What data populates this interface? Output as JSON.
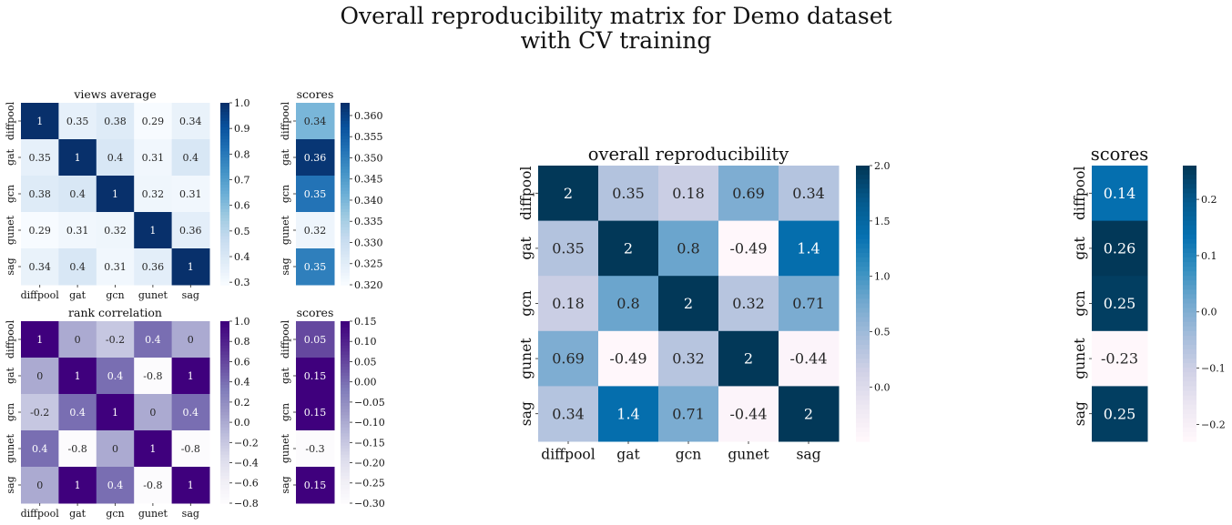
{
  "figure": {
    "title_line1": "Overall reproducibility matrix for Demo dataset",
    "title_line2": "with CV training"
  },
  "colormaps": {
    "Blues": [
      "#f7fbff",
      "#deebf7",
      "#c6dbef",
      "#9ecae1",
      "#6baed6",
      "#4292c6",
      "#2171b5",
      "#08519c",
      "#08306b"
    ],
    "Purples": [
      "#fcfbfd",
      "#efedf5",
      "#dadaeb",
      "#bcbddc",
      "#9e9ac8",
      "#807dba",
      "#6a51a3",
      "#54278f",
      "#3f007d"
    ],
    "PuBu": [
      "#fff7fb",
      "#ece7f2",
      "#d0d1e6",
      "#a6bddb",
      "#74a9cf",
      "#3690c0",
      "#0570b0",
      "#045a8d",
      "#023858"
    ]
  },
  "chart_data": [
    {
      "type": "heatmap",
      "title": "views average",
      "colormap": "Blues",
      "row_labels": [
        "diffpool",
        "gat",
        "gcn",
        "gunet",
        "sag"
      ],
      "col_labels": [
        "diffpool",
        "gat",
        "gcn",
        "gunet",
        "sag"
      ],
      "values": [
        [
          1,
          0.35,
          0.38,
          0.29,
          0.34
        ],
        [
          0.35,
          1,
          0.4,
          0.31,
          0.4
        ],
        [
          0.38,
          0.4,
          1,
          0.32,
          0.31
        ],
        [
          0.29,
          0.31,
          0.32,
          1,
          0.36
        ],
        [
          0.34,
          0.4,
          0.31,
          0.36,
          1
        ]
      ],
      "annotations": [
        [
          "1",
          "0.35",
          "0.38",
          "0.29",
          "0.34"
        ],
        [
          "0.35",
          "1",
          "0.4",
          "0.31",
          "0.4"
        ],
        [
          "0.38",
          "0.4",
          "1",
          "0.32",
          "0.31"
        ],
        [
          "0.29",
          "0.31",
          "0.32",
          "1",
          "0.36"
        ],
        [
          "0.34",
          "0.4",
          "0.31",
          "0.36",
          "1"
        ]
      ],
      "vmin": 0.29,
      "vmax": 1.0,
      "colorbar_ticks": [
        0.3,
        0.4,
        0.5,
        0.6,
        0.7,
        0.8,
        0.9,
        1.0
      ],
      "colorbar_labels": [
        "0.3",
        "0.4",
        "0.5",
        "0.6",
        "0.7",
        "0.8",
        "0.9",
        "1.0"
      ]
    },
    {
      "type": "heatmap",
      "title": "scores",
      "colormap": "Blues",
      "row_labels": [
        "diffpool",
        "gat",
        "gcn",
        "gunet",
        "sag"
      ],
      "col_labels": [],
      "values": [
        [
          0.34
        ],
        [
          0.362
        ],
        [
          0.352
        ],
        [
          0.322
        ],
        [
          0.35
        ]
      ],
      "annotations": [
        [
          "0.34"
        ],
        [
          "0.36"
        ],
        [
          "0.35"
        ],
        [
          "0.32"
        ],
        [
          "0.35"
        ]
      ],
      "vmin": 0.32,
      "vmax": 0.363,
      "colorbar_ticks": [
        0.32,
        0.325,
        0.33,
        0.335,
        0.34,
        0.345,
        0.35,
        0.355,
        0.36
      ],
      "colorbar_labels": [
        "0.320",
        "0.325",
        "0.330",
        "0.335",
        "0.340",
        "0.345",
        "0.350",
        "0.355",
        "0.360"
      ]
    },
    {
      "type": "heatmap",
      "title": "rank correlation",
      "colormap": "Purples",
      "row_labels": [
        "diffpool",
        "gat",
        "gcn",
        "gunet",
        "sag"
      ],
      "col_labels": [
        "diffpool",
        "gat",
        "gcn",
        "gunet",
        "sag"
      ],
      "values": [
        [
          1,
          0,
          -0.2,
          0.4,
          0
        ],
        [
          0,
          1,
          0.4,
          -0.8,
          1
        ],
        [
          -0.2,
          0.4,
          1,
          0,
          0.4
        ],
        [
          0.4,
          -0.8,
          0,
          1,
          -0.8
        ],
        [
          0,
          1,
          0.4,
          -0.8,
          1
        ]
      ],
      "annotations": [
        [
          "1",
          "0",
          "-0.2",
          "0.4",
          "0"
        ],
        [
          "0",
          "1",
          "0.4",
          "-0.8",
          "1"
        ],
        [
          "-0.2",
          "0.4",
          "1",
          "0",
          "0.4"
        ],
        [
          "0.4",
          "-0.8",
          "0",
          "1",
          "-0.8"
        ],
        [
          "0",
          "1",
          "0.4",
          "-0.8",
          "1"
        ]
      ],
      "vmin": -0.8,
      "vmax": 1.0,
      "colorbar_ticks": [
        -0.8,
        -0.6,
        -0.4,
        -0.2,
        0.0,
        0.2,
        0.4,
        0.6,
        0.8,
        1.0
      ],
      "colorbar_labels": [
        "−0.8",
        "−0.6",
        "−0.4",
        "−0.2",
        "0.0",
        "0.2",
        "0.4",
        "0.6",
        "0.8",
        "1.0"
      ]
    },
    {
      "type": "heatmap",
      "title": "scores",
      "colormap": "Purples",
      "row_labels": [
        "diffpool",
        "gat",
        "gcn",
        "gunet",
        "sag"
      ],
      "col_labels": [],
      "values": [
        [
          0.05
        ],
        [
          0.15
        ],
        [
          0.15
        ],
        [
          -0.3
        ],
        [
          0.15
        ]
      ],
      "annotations": [
        [
          "0.05"
        ],
        [
          "0.15"
        ],
        [
          "0.15"
        ],
        [
          "-0.3"
        ],
        [
          "0.15"
        ]
      ],
      "vmin": -0.3,
      "vmax": 0.15,
      "colorbar_ticks": [
        -0.3,
        -0.25,
        -0.2,
        -0.15,
        -0.1,
        -0.05,
        0.0,
        0.05,
        0.1,
        0.15
      ],
      "colorbar_labels": [
        "−0.30",
        "−0.25",
        "−0.20",
        "−0.15",
        "−0.10",
        "−0.05",
        "0.00",
        "0.05",
        "0.10",
        "0.15"
      ]
    },
    {
      "type": "heatmap",
      "title": "overall reproducibility",
      "colormap": "PuBu",
      "row_labels": [
        "diffpool",
        "gat",
        "gcn",
        "gunet",
        "sag"
      ],
      "col_labels": [
        "diffpool",
        "gat",
        "gcn",
        "gunet",
        "sag"
      ],
      "values": [
        [
          2,
          0.35,
          0.18,
          0.69,
          0.34
        ],
        [
          0.35,
          2,
          0.8,
          -0.49,
          1.4
        ],
        [
          0.18,
          0.8,
          2,
          0.32,
          0.71
        ],
        [
          0.69,
          -0.49,
          0.32,
          2,
          -0.44
        ],
        [
          0.34,
          1.4,
          0.71,
          -0.44,
          2
        ]
      ],
      "annotations": [
        [
          "2",
          "0.35",
          "0.18",
          "0.69",
          "0.34"
        ],
        [
          "0.35",
          "2",
          "0.8",
          "-0.49",
          "1.4"
        ],
        [
          "0.18",
          "0.8",
          "2",
          "0.32",
          "0.71"
        ],
        [
          "0.69",
          "-0.49",
          "0.32",
          "2",
          "-0.44"
        ],
        [
          "0.34",
          "1.4",
          "0.71",
          "-0.44",
          "2"
        ]
      ],
      "vmin": -0.49,
      "vmax": 2.0,
      "colorbar_ticks": [
        0.0,
        0.5,
        1.0,
        1.5,
        2.0
      ],
      "colorbar_labels": [
        "0.0",
        "0.5",
        "1.0",
        "1.5",
        "2.0"
      ]
    },
    {
      "type": "heatmap",
      "title": "scores",
      "colormap": "PuBu",
      "row_labels": [
        "diffpool",
        "gat",
        "gcn",
        "gunet",
        "sag"
      ],
      "col_labels": [],
      "values": [
        [
          0.14
        ],
        [
          0.26
        ],
        [
          0.25
        ],
        [
          -0.23
        ],
        [
          0.25
        ]
      ],
      "annotations": [
        [
          "0.14"
        ],
        [
          "0.26"
        ],
        [
          "0.25"
        ],
        [
          "-0.23"
        ],
        [
          "0.25"
        ]
      ],
      "vmin": -0.23,
      "vmax": 0.26,
      "colorbar_ticks": [
        -0.2,
        -0.1,
        0.0,
        0.1,
        0.2
      ],
      "colorbar_labels": [
        "−0.2",
        "−0.1",
        "0.0",
        "0.1",
        "0.2"
      ]
    }
  ]
}
